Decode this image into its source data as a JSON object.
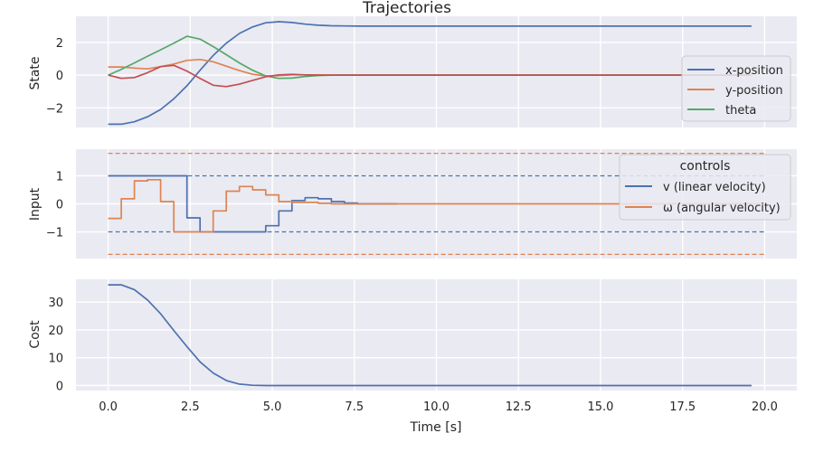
{
  "figure": {
    "title": "Trajectories",
    "colors": {
      "background": "#ffffff",
      "panel": "#eaeaf2",
      "grid": "#ffffff",
      "blue": "#4c72b0",
      "orange": "#dd8452",
      "green": "#55a868",
      "red": "#c44e52"
    }
  },
  "chart_data": [
    {
      "type": "line",
      "title": "Trajectories",
      "xlabel": "",
      "ylabel": "State",
      "xlim": [
        -0.98,
        20.98
      ],
      "ylim": [
        -3.2,
        3.6
      ],
      "yticks": [
        2,
        0,
        -2
      ],
      "ytick_labels": [
        "2",
        "0",
        "−2"
      ],
      "grid": true,
      "legend": {
        "placement": "right",
        "title": "",
        "entries": [
          "x-position",
          "y-position",
          "theta"
        ]
      },
      "series": [
        {
          "name": "x-position",
          "color": "#4c72b0",
          "x": [
            0,
            0.4,
            0.8,
            1.2,
            1.6,
            2.0,
            2.4,
            2.8,
            3.2,
            3.6,
            4.0,
            4.4,
            4.8,
            5.2,
            5.6,
            6.0,
            6.4,
            6.8,
            7.2,
            7.6,
            8.0,
            10,
            12,
            14,
            16,
            18,
            19.6
          ],
          "y": [
            -3.0,
            -3.0,
            -2.85,
            -2.55,
            -2.1,
            -1.45,
            -0.65,
            0.3,
            1.2,
            1.95,
            2.55,
            2.95,
            3.2,
            3.27,
            3.22,
            3.12,
            3.05,
            3.02,
            3.01,
            3.0,
            3.0,
            3.0,
            3.0,
            3.0,
            3.0,
            3.0,
            3.0
          ]
        },
        {
          "name": "y-position",
          "color": "#dd8452",
          "x": [
            0,
            0.4,
            0.8,
            1.2,
            1.6,
            2.0,
            2.4,
            2.8,
            3.2,
            3.6,
            4.0,
            4.4,
            4.8,
            5.2,
            5.6,
            6.0,
            6.4,
            6.8,
            7.2,
            8.0,
            10,
            12,
            14,
            16,
            18,
            19.6
          ],
          "y": [
            0.5,
            0.5,
            0.43,
            0.38,
            0.52,
            0.68,
            0.9,
            0.96,
            0.82,
            0.55,
            0.28,
            0.05,
            -0.05,
            -0.03,
            0.02,
            0.02,
            0.01,
            0.0,
            0.0,
            0.0,
            0.0,
            0.0,
            0.0,
            0.0,
            0.0,
            0.0
          ]
        },
        {
          "name": "theta",
          "color": "#55a868",
          "x": [
            0,
            0.4,
            0.8,
            1.2,
            1.6,
            2.0,
            2.4,
            2.8,
            3.2,
            3.6,
            4.0,
            4.4,
            4.8,
            5.2,
            5.6,
            6.0,
            6.4,
            6.8,
            7.2,
            8.0,
            10,
            12,
            14,
            16,
            18,
            19.6
          ],
          "y": [
            0.0,
            0.35,
            0.75,
            1.15,
            1.55,
            1.95,
            2.38,
            2.2,
            1.75,
            1.25,
            0.75,
            0.3,
            -0.05,
            -0.2,
            -0.18,
            -0.08,
            -0.02,
            0.0,
            0.0,
            0.0,
            0.0,
            0.0,
            0.0,
            0.0,
            0.0,
            0.0
          ]
        },
        {
          "name": "",
          "color": "#c44e52",
          "x": [
            0,
            0.4,
            0.8,
            1.2,
            1.6,
            2.0,
            2.4,
            2.8,
            3.2,
            3.6,
            4.0,
            4.4,
            4.8,
            5.2,
            5.6,
            6.0,
            6.4,
            6.8,
            7.2,
            8.0,
            10,
            12,
            14,
            16,
            18,
            19.6
          ],
          "y": [
            0.0,
            -0.2,
            -0.15,
            0.15,
            0.52,
            0.6,
            0.25,
            -0.2,
            -0.62,
            -0.7,
            -0.55,
            -0.32,
            -0.1,
            0.02,
            0.05,
            0.02,
            0.0,
            0.0,
            0.0,
            0.0,
            0.0,
            0.0,
            0.0,
            0.0,
            0.0,
            0.0
          ]
        }
      ]
    },
    {
      "type": "line",
      "title": "",
      "xlabel": "",
      "ylabel": "Input",
      "xlim": [
        -0.98,
        20.98
      ],
      "ylim": [
        -1.95,
        1.95
      ],
      "yticks": [
        1,
        0,
        -1
      ],
      "ytick_labels": [
        "1",
        "0",
        "−1"
      ],
      "grid": true,
      "legend": {
        "placement": "right",
        "title": "controls",
        "entries": [
          "v (linear velocity)",
          "ω (angular velocity)"
        ]
      },
      "reference_lines": [
        {
          "color": "#4c72b0",
          "style": "dashed",
          "y": 1.0,
          "x": [
            0,
            20
          ]
        },
        {
          "color": "#4c72b0",
          "style": "dashed",
          "y": -1.0,
          "x": [
            0,
            20
          ]
        },
        {
          "color": "#dd8452",
          "style": "dashed",
          "y": 1.8,
          "x": [
            0,
            20
          ]
        },
        {
          "color": "#dd8452",
          "style": "dashed",
          "y": -1.8,
          "x": [
            0,
            20
          ]
        }
      ],
      "series": [
        {
          "name": "v (linear velocity)",
          "color": "#4c72b0",
          "step": "post",
          "x": [
            0,
            0.4,
            0.8,
            1.2,
            1.6,
            2.0,
            2.4,
            2.8,
            3.2,
            3.6,
            4.0,
            4.4,
            4.8,
            5.2,
            5.6,
            6.0,
            6.4,
            6.8,
            7.2,
            7.6,
            8.0,
            8.4
          ],
          "y": [
            1.0,
            1.0,
            1.0,
            1.0,
            1.0,
            1.0,
            -0.5,
            -1.0,
            -1.0,
            -1.0,
            -1.0,
            -1.0,
            -0.78,
            -0.25,
            0.12,
            0.22,
            0.18,
            0.08,
            0.03,
            0.0,
            0.0,
            0.0
          ]
        },
        {
          "name": "ω (angular velocity)",
          "color": "#dd8452",
          "step": "post",
          "x": [
            0,
            0.4,
            0.8,
            1.2,
            1.6,
            2.0,
            2.4,
            2.8,
            3.2,
            3.6,
            4.0,
            4.4,
            4.8,
            5.2,
            5.6,
            6.0,
            6.4,
            6.8,
            7.2,
            7.6,
            8.0,
            8.4,
            10,
            12,
            14,
            16,
            18,
            19.6
          ],
          "y": [
            -0.52,
            0.18,
            0.82,
            0.86,
            0.08,
            -1.0,
            -1.0,
            -1.0,
            -0.25,
            0.45,
            0.62,
            0.5,
            0.32,
            0.08,
            0.05,
            0.05,
            0.02,
            0.0,
            0.0,
            0.0,
            0.0,
            0.0,
            0.0,
            0.0,
            0.0,
            0.0,
            0.0,
            0.0
          ]
        }
      ]
    },
    {
      "type": "line",
      "title": "",
      "xlabel": "Time [s]",
      "ylabel": "Cost",
      "xlim": [
        -0.98,
        20.98
      ],
      "ylim": [
        -1.8,
        38.2
      ],
      "yticks": [
        0,
        10,
        20,
        30
      ],
      "ytick_labels": [
        "0",
        "10",
        "20",
        "30"
      ],
      "xticks": [
        0,
        2.5,
        5,
        7.5,
        10,
        12.5,
        15,
        17.5,
        20
      ],
      "xtick_labels": [
        "0.0",
        "2.5",
        "5.0",
        "7.5",
        "10.0",
        "12.5",
        "15.0",
        "17.5",
        "20.0"
      ],
      "grid": true,
      "series": [
        {
          "name": "",
          "color": "#4c72b0",
          "x": [
            0,
            0.4,
            0.8,
            1.2,
            1.6,
            2.0,
            2.4,
            2.8,
            3.2,
            3.6,
            4.0,
            4.4,
            4.8,
            5.2,
            6,
            8,
            10,
            12,
            14,
            16,
            18,
            19.6
          ],
          "y": [
            36.2,
            36.2,
            34.5,
            30.8,
            25.8,
            19.8,
            14.0,
            8.5,
            4.5,
            1.8,
            0.5,
            0.1,
            0.0,
            0.0,
            0.0,
            0.0,
            0.0,
            0.0,
            0.0,
            0.0,
            0.0,
            0.0
          ]
        }
      ]
    }
  ]
}
